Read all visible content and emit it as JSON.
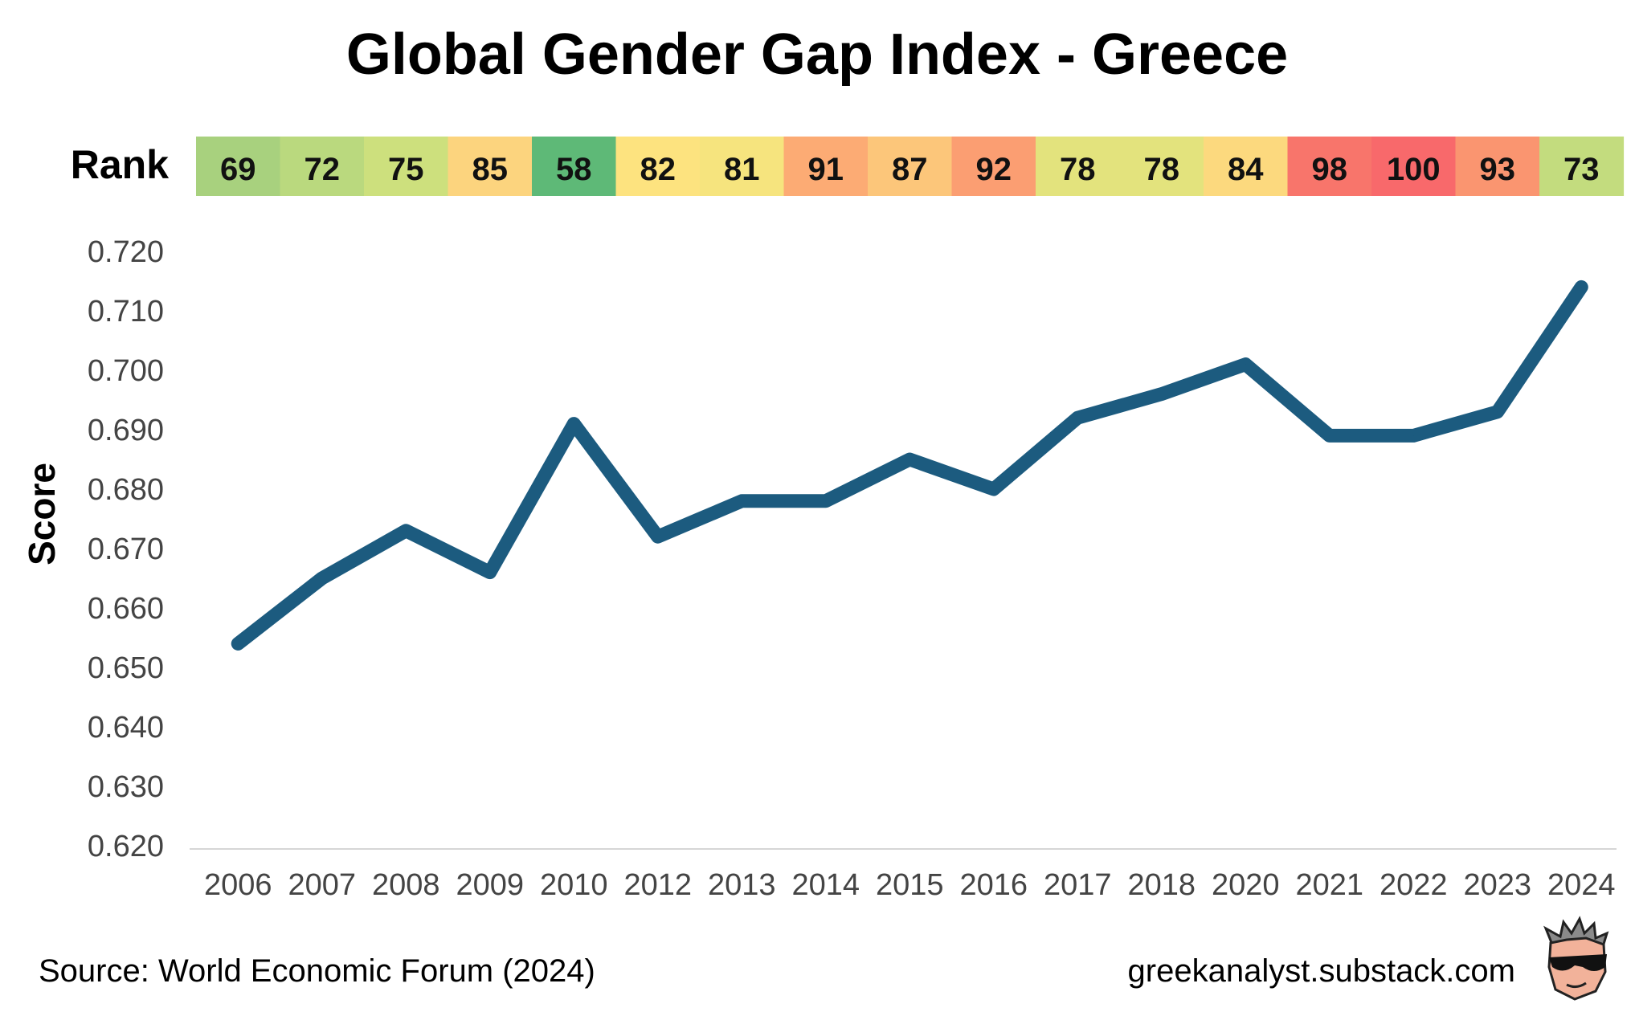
{
  "chart_data": {
    "type": "line",
    "title": "Global Gender Gap Index - Greece",
    "ylabel": "Score",
    "xlabel": "",
    "ylim": [
      0.62,
      0.72
    ],
    "yticks": [
      "0.720",
      "0.710",
      "0.700",
      "0.690",
      "0.680",
      "0.670",
      "0.660",
      "0.650",
      "0.640",
      "0.630",
      "0.620"
    ],
    "ytick_values": [
      0.72,
      0.71,
      0.7,
      0.69,
      0.68,
      0.67,
      0.66,
      0.65,
      0.64,
      0.63,
      0.62
    ],
    "grid": false,
    "categories": [
      "2006",
      "2007",
      "2008",
      "2009",
      "2010",
      "2012",
      "2013",
      "2014",
      "2015",
      "2016",
      "2017",
      "2018",
      "2020",
      "2021",
      "2022",
      "2023",
      "2024"
    ],
    "series": [
      {
        "values": [
          0.654,
          0.665,
          0.673,
          0.666,
          0.691,
          0.672,
          0.678,
          0.678,
          0.685,
          0.68,
          0.692,
          0.696,
          0.701,
          0.689,
          0.689,
          0.693,
          0.714
        ],
        "color": "#1c5b7f"
      }
    ],
    "rank_row": {
      "label": "Rank",
      "values": [
        "69",
        "72",
        "75",
        "85",
        "58",
        "82",
        "81",
        "91",
        "87",
        "92",
        "78",
        "78",
        "84",
        "98",
        "100",
        "93",
        "73"
      ],
      "colors": [
        "#a8d17e",
        "#bad97e",
        "#cde07d",
        "#fcd47e",
        "#5eb977",
        "#fde37f",
        "#f6e47e",
        "#fcab74",
        "#fcc67a",
        "#fb9e72",
        "#e3e37d",
        "#e3e37d",
        "#fcd97e",
        "#f8756b",
        "#f8696b",
        "#fa9570",
        "#c3dc7e"
      ]
    }
  },
  "footer": {
    "source": "Source: World Economic Forum (2024)",
    "site": "greekanalyst.substack.com"
  }
}
